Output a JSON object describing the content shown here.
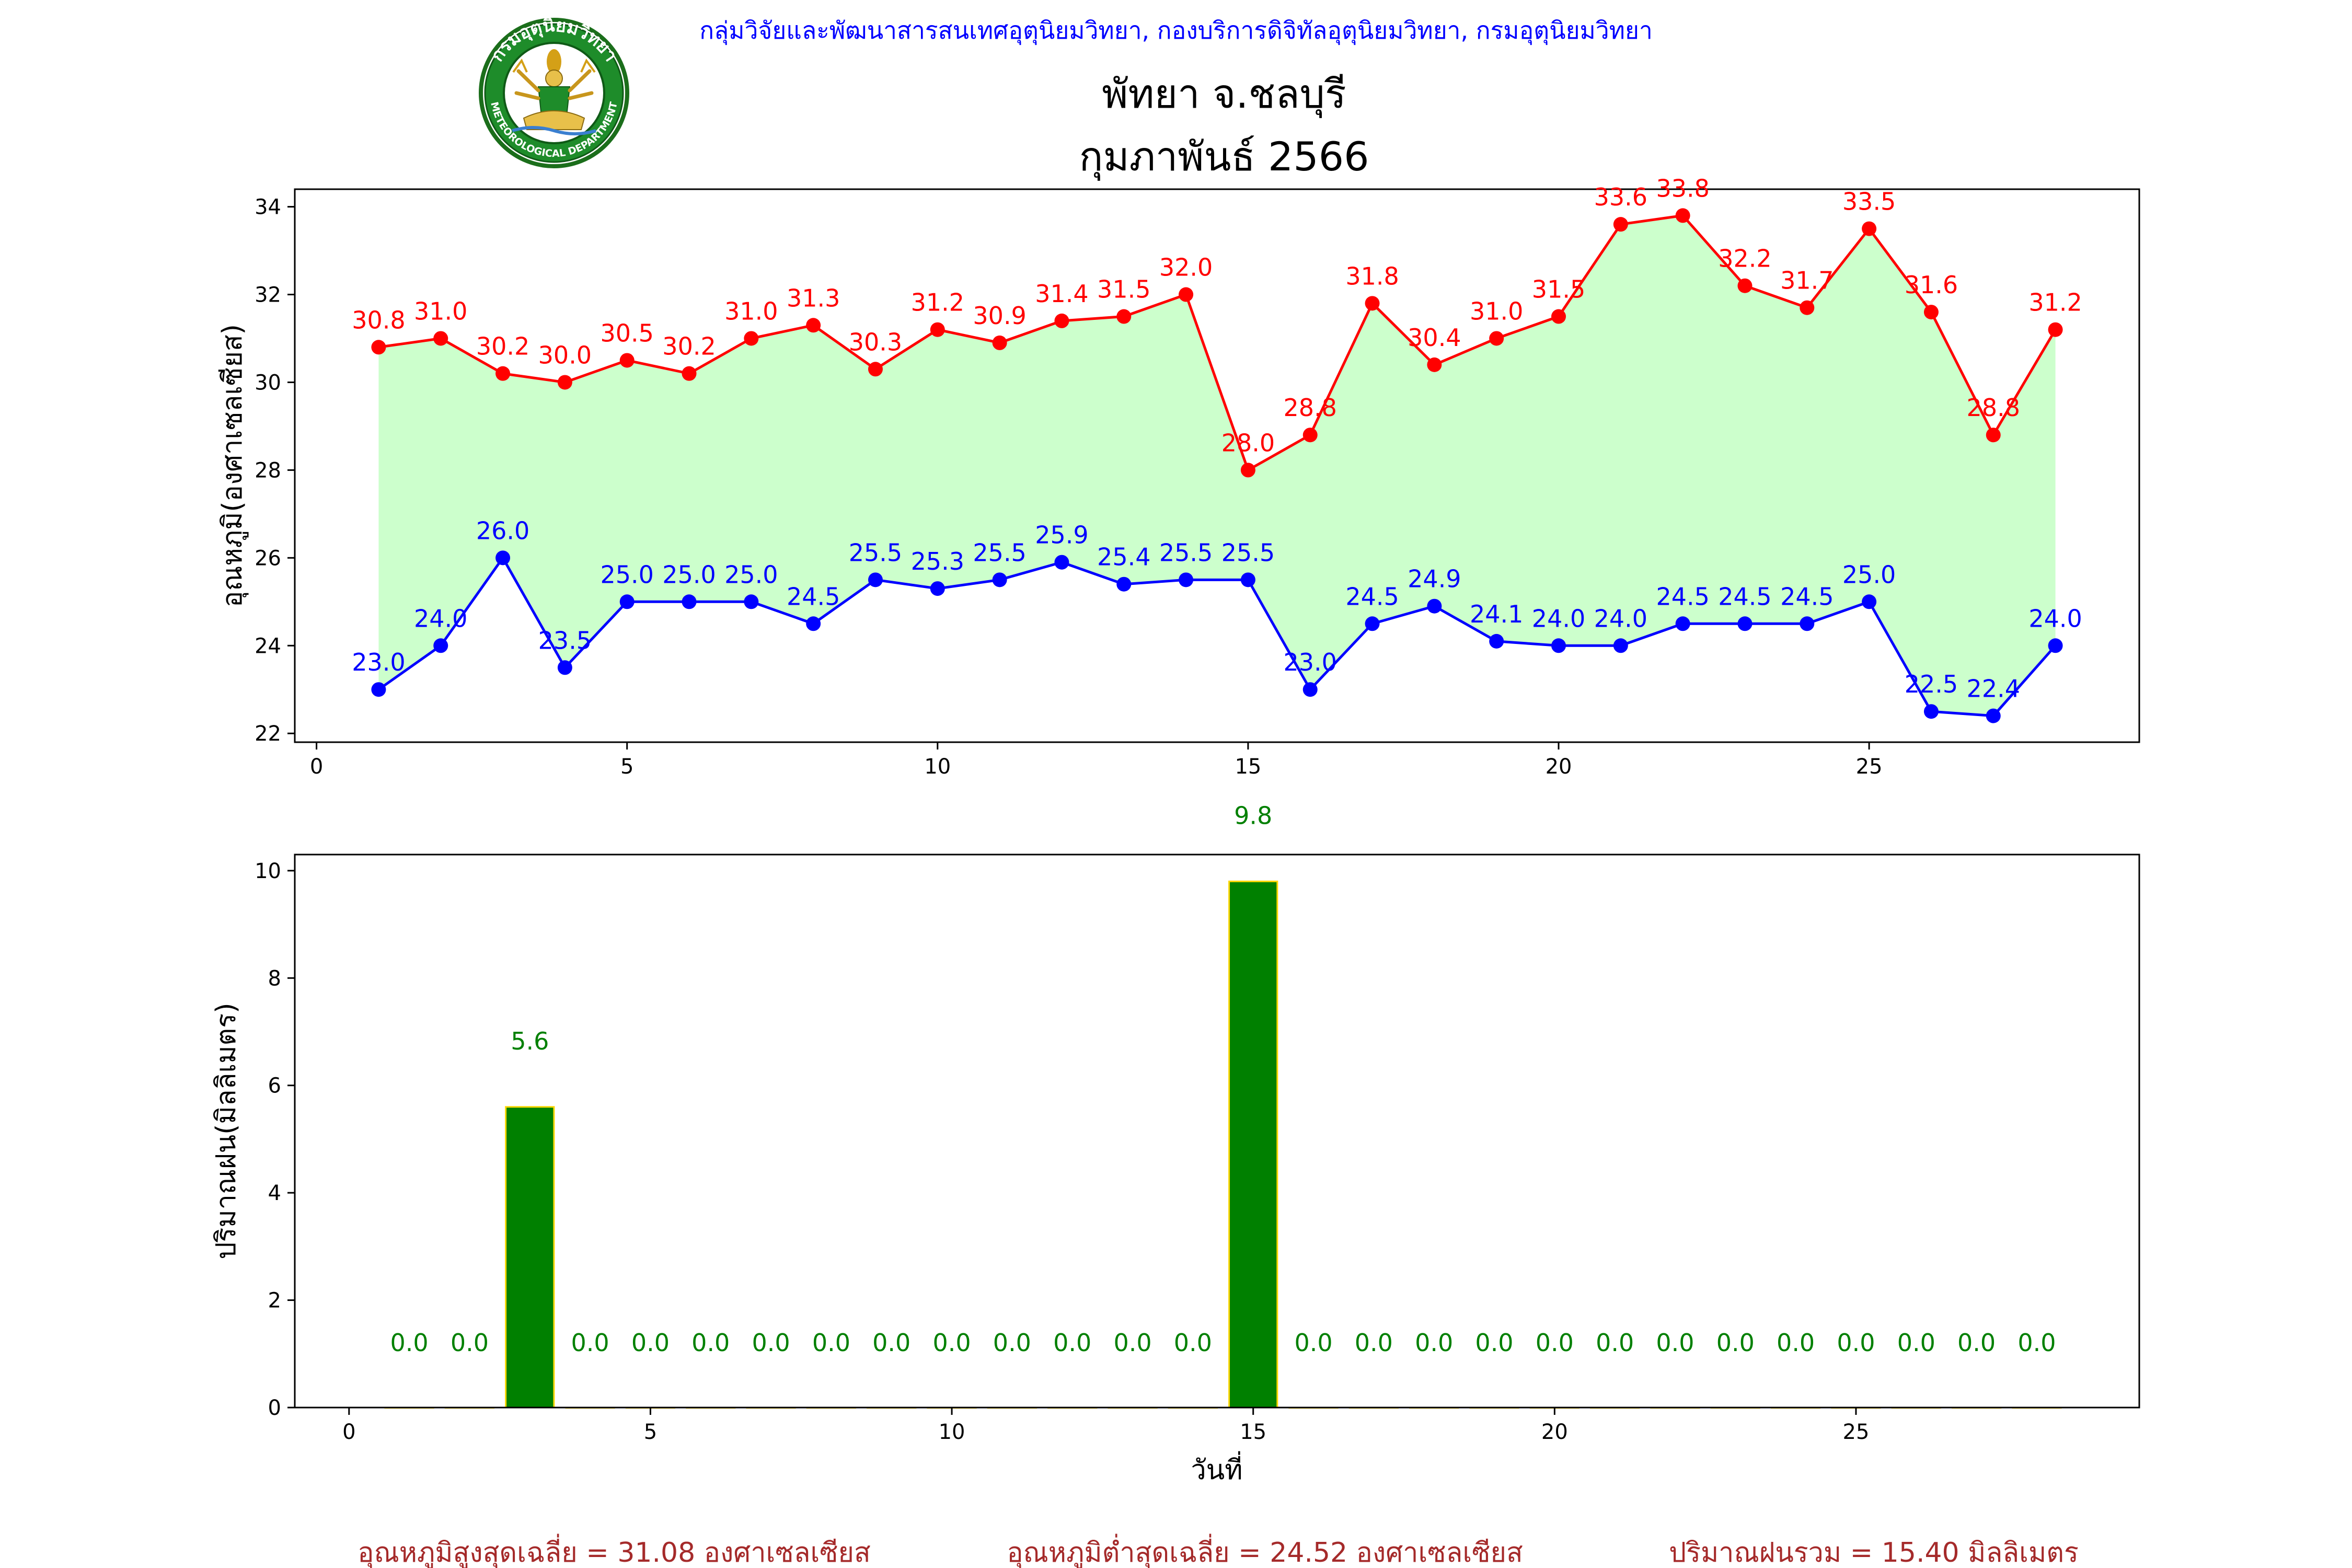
{
  "header": {
    "agency": "กลุ่มวิจัยและพัฒนาสารสนเทศอุตุนิยมวิทยา, กองบริการดิจิทัลอุตุนิยมวิทยา, กรมอุตุนิยมวิทยา",
    "station": "พัทยา จ.ชลบุรี",
    "period": "กุมภาพันธ์ 2566"
  },
  "logo": {
    "name": "meteorological-department-seal",
    "text_top": "กรมอุตุนิยมวิทยา",
    "text_bottom": "METEOROLOGICAL DEPARTMENT"
  },
  "colors": {
    "agency_text": "#0000ff",
    "max_line": "#ff0000",
    "min_line": "#0000ff",
    "fill_between": "#ccffcc",
    "rain_bar": "#008000",
    "rain_bar_edge": "#ffd700",
    "summary_text": "#a52a2a"
  },
  "chart_data": [
    {
      "type": "line",
      "name": "temperature",
      "ylabel": "อุณหภูมิ(องศาเซลเซียส)",
      "xlim": [
        -0.35,
        29.35
      ],
      "ylim": [
        21.8,
        34.4
      ],
      "xticks": [
        0,
        5,
        10,
        15,
        20,
        25
      ],
      "yticks": [
        22,
        24,
        26,
        28,
        30,
        32,
        34
      ],
      "fill_between_series": true,
      "x": [
        1,
        2,
        3,
        4,
        5,
        6,
        7,
        8,
        9,
        10,
        11,
        12,
        13,
        14,
        15,
        16,
        17,
        18,
        19,
        20,
        21,
        22,
        23,
        24,
        25,
        26,
        27,
        28
      ],
      "series": [
        {
          "role": "max",
          "values": [
            30.8,
            31.0,
            30.2,
            30.0,
            30.5,
            30.2,
            31.0,
            31.3,
            30.3,
            31.2,
            30.9,
            31.4,
            31.5,
            32.0,
            28.0,
            28.8,
            31.8,
            30.4,
            31.0,
            31.5,
            33.6,
            33.8,
            32.2,
            31.7,
            33.5,
            31.6,
            28.8,
            31.2
          ],
          "labels": [
            "30.8",
            "31.0",
            "30.2",
            "30.0",
            "30.5",
            "30.2",
            "31.0",
            "31.3",
            "30.3",
            "31.2",
            "30.9",
            "31.4",
            "31.5",
            "32.0",
            "28.0",
            "28.8",
            "31.8",
            "30.4",
            "31.0",
            "31.5",
            "33.6",
            "33.8",
            "32.2",
            "31.7",
            "33.5",
            "31.6",
            "28.8",
            "31.2"
          ]
        },
        {
          "role": "min",
          "values": [
            23.0,
            24.0,
            26.0,
            23.5,
            25.0,
            25.0,
            25.0,
            24.5,
            25.5,
            25.3,
            25.5,
            25.9,
            25.4,
            25.5,
            25.5,
            23.0,
            24.5,
            24.9,
            24.1,
            24.0,
            24.0,
            24.5,
            24.5,
            24.5,
            25.0,
            22.5,
            22.4,
            24.0
          ],
          "labels": [
            "23.0",
            "24.0",
            "26.0",
            "23.5",
            "25.0",
            "25.0",
            "25.0",
            "24.5",
            "25.5",
            "25.3",
            "25.5",
            "25.9",
            "25.4",
            "25.5",
            "25.5",
            "23.0",
            "24.5",
            "24.9",
            "24.1",
            "24.0",
            "24.0",
            "24.5",
            "24.5",
            "24.5",
            "25.0",
            "22.5",
            "22.4",
            "24.0"
          ]
        }
      ]
    },
    {
      "type": "bar",
      "name": "rainfall",
      "xlabel": "วันที่",
      "ylabel": "ปริมาณฝน(มิลลิเมตร)",
      "xlim": [
        -0.9,
        29.7
      ],
      "ylim": [
        0,
        10.3
      ],
      "xticks": [
        0,
        5,
        10,
        15,
        20,
        25
      ],
      "yticks": [
        0,
        2,
        4,
        6,
        8,
        10
      ],
      "x": [
        1,
        2,
        3,
        4,
        5,
        6,
        7,
        8,
        9,
        10,
        11,
        12,
        13,
        14,
        15,
        16,
        17,
        18,
        19,
        20,
        21,
        22,
        23,
        24,
        25,
        26,
        27,
        28
      ],
      "values": [
        0.0,
        0.0,
        5.6,
        0.0,
        0.0,
        0.0,
        0.0,
        0.0,
        0.0,
        0.0,
        0.0,
        0.0,
        0.0,
        0.0,
        9.8,
        0.0,
        0.0,
        0.0,
        0.0,
        0.0,
        0.0,
        0.0,
        0.0,
        0.0,
        0.0,
        0.0,
        0.0,
        0.0
      ],
      "labels": [
        "0.0",
        "0.0",
        "5.6",
        "0.0",
        "0.0",
        "0.0",
        "0.0",
        "0.0",
        "0.0",
        "0.0",
        "0.0",
        "0.0",
        "0.0",
        "0.0",
        "9.8",
        "0.0",
        "0.0",
        "0.0",
        "0.0",
        "0.0",
        "0.0",
        "0.0",
        "0.0",
        "0.0",
        "0.0",
        "0.0",
        "0.0",
        "0.0"
      ]
    }
  ],
  "summary": {
    "avg_max": "อุณหภูมิสูงสุดเฉลี่ย = 31.08 องศาเซลเซียส",
    "avg_min": "อุณหภูมิต่ำสุดเฉลี่ย = 24.52 องศาเซลเซียส",
    "total_rain": "ปริมาณฝนรวม = 15.40 มิลลิเมตร"
  }
}
